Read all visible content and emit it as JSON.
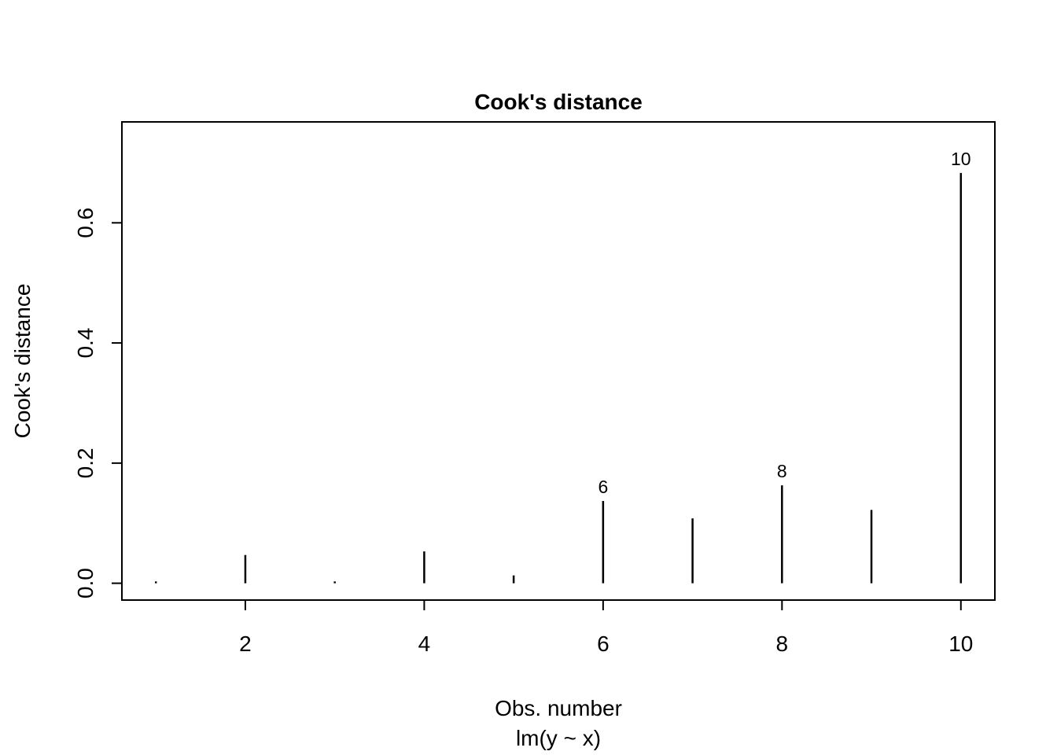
{
  "chart_data": {
    "type": "bar",
    "subtype": "spike",
    "title": "Cook's distance",
    "xlabel": "Obs. number",
    "sublabel": "lm(y ~ x)",
    "ylabel": "Cook's distance",
    "x": [
      1,
      2,
      3,
      4,
      5,
      6,
      7,
      8,
      9,
      10
    ],
    "values": [
      0.003,
      0.047,
      0.003,
      0.053,
      0.013,
      0.137,
      0.108,
      0.163,
      0.122,
      0.683
    ],
    "point_labels": {
      "6": "6",
      "8": "8",
      "10": "10"
    },
    "xticks": [
      2,
      4,
      6,
      8,
      10
    ],
    "xtick_labels": [
      "2",
      "4",
      "6",
      "8",
      "10"
    ],
    "yticks": [
      0.0,
      0.2,
      0.4,
      0.6
    ],
    "ytick_labels": [
      "0.0",
      "0.2",
      "0.4",
      "0.6"
    ],
    "xlim": [
      0.62,
      10.38
    ],
    "ylim": [
      -0.028,
      0.768
    ],
    "grid": false,
    "legend": null,
    "colors": {
      "line": "#000000",
      "background": "#ffffff",
      "box": "#000000"
    }
  }
}
